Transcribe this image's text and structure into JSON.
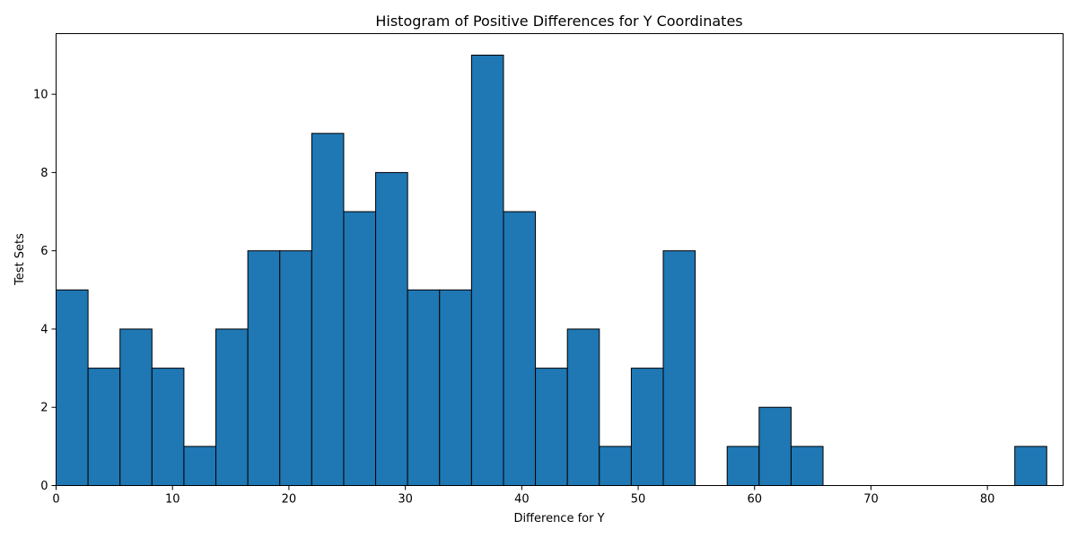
{
  "chart_data": {
    "type": "bar",
    "title": "Histogram of Positive Differences for Y Coordinates",
    "xlabel": "Difference for Y",
    "ylabel": "Test Sets",
    "xlim": [
      0,
      86.5
    ],
    "ylim": [
      0,
      11.55
    ],
    "xticks": [
      0,
      10,
      20,
      30,
      40,
      50,
      60,
      70,
      80
    ],
    "yticks": [
      0,
      2,
      4,
      6,
      8,
      10
    ],
    "grid": false,
    "legend": "none",
    "colors": {
      "bar_fill": "#1f77b4",
      "bar_edge": "#000000"
    },
    "bin_start": 0.0,
    "bin_width": 2.745,
    "counts": [
      5,
      3,
      4,
      3,
      1,
      4,
      6,
      6,
      9,
      7,
      8,
      5,
      5,
      11,
      7,
      3,
      4,
      1,
      3,
      6,
      0,
      1,
      2,
      1,
      0,
      0,
      0,
      0,
      0,
      0,
      1
    ]
  }
}
